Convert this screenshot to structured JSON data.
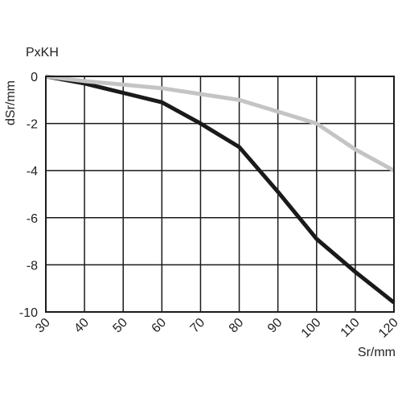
{
  "chart_data": {
    "type": "line",
    "title": "PxKH",
    "xlabel": "Sr/mm",
    "ylabel": "dSr/mm",
    "xlim": [
      30,
      120
    ],
    "ylim": [
      -10,
      0
    ],
    "grid": true,
    "x_ticks": [
      30,
      40,
      50,
      60,
      70,
      80,
      90,
      100,
      110,
      120
    ],
    "y_ticks": [
      0,
      -2,
      -4,
      -6,
      -8,
      -10
    ],
    "series": [
      {
        "color": "#1a1a1a",
        "x": [
          30,
          40,
          50,
          60,
          70,
          80,
          90,
          100,
          110,
          120
        ],
        "y": [
          0,
          -0.3,
          -0.7,
          -1.1,
          -2.0,
          -3.0,
          -4.9,
          -6.9,
          -8.3,
          -9.6
        ]
      },
      {
        "color": "#c4c4c4",
        "x": [
          30,
          40,
          50,
          60,
          70,
          80,
          90,
          100,
          110,
          120
        ],
        "y": [
          0,
          -0.2,
          -0.35,
          -0.5,
          -0.75,
          -1.0,
          -1.5,
          -2.0,
          -3.1,
          -4.0
        ]
      }
    ]
  }
}
